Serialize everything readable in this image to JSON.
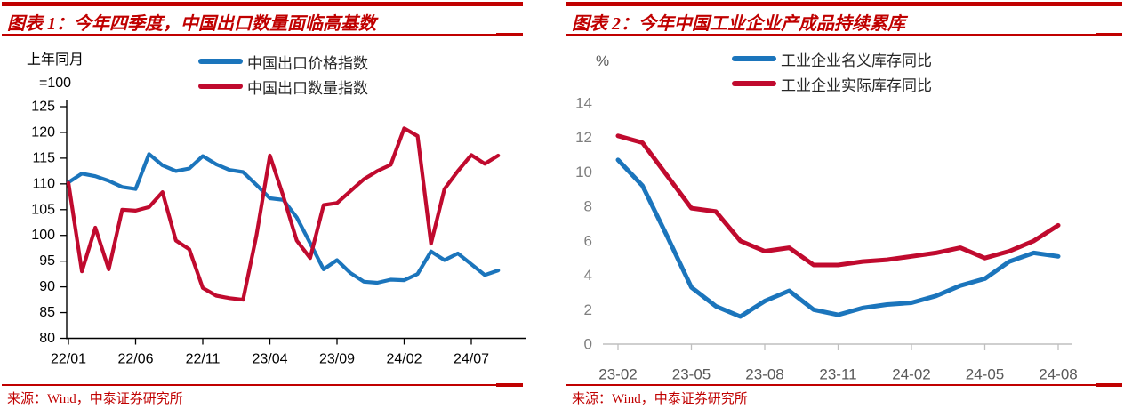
{
  "page": {
    "background": "#ffffff"
  },
  "colors": {
    "accent_red": "#C00000",
    "line_blue": "#1B75BC",
    "line_red": "#C00A2E",
    "axis_gray": "#BFBFBF",
    "label_gray": "#595959"
  },
  "chart_data": [
    {
      "type": "line",
      "title": "图表 1：今年四季度，中国出口数量面临高基数",
      "source": "来源：Wind，中泰证券研究所",
      "y_axis_unit_lines": [
        "上年同月",
        "=100"
      ],
      "ylim": [
        80,
        125
      ],
      "y_tick_step": 5,
      "grid": false,
      "legend_position": "top",
      "axis_color": "#000000",
      "x_tick_label_color": "#000000",
      "y_tick_label_color": "#000000",
      "categories": [
        "22/01",
        "22/02",
        "22/03",
        "22/04",
        "22/05",
        "22/06",
        "22/07",
        "22/08",
        "22/09",
        "22/10",
        "22/11",
        "22/12",
        "23/01",
        "23/02",
        "23/03",
        "23/04",
        "23/05",
        "23/06",
        "23/07",
        "23/08",
        "23/09",
        "23/10",
        "23/11",
        "23/12",
        "24/01",
        "24/02",
        "24/03",
        "24/04",
        "24/05",
        "24/06",
        "24/07",
        "24/08",
        "24/09"
      ],
      "x_tick_labels": [
        {
          "index": 0,
          "label": "22/01"
        },
        {
          "index": 5,
          "label": "22/06"
        },
        {
          "index": 10,
          "label": "22/11"
        },
        {
          "index": 15,
          "label": "23/04"
        },
        {
          "index": 20,
          "label": "23/09"
        },
        {
          "index": 25,
          "label": "24/02"
        },
        {
          "index": 30,
          "label": "24/07"
        }
      ],
      "series": [
        {
          "name": "中国出口价格指数",
          "color": "#1B75BC",
          "values": [
            110.3,
            112.0,
            111.5,
            110.6,
            109.4,
            109.0,
            115.8,
            113.6,
            112.5,
            113.0,
            115.4,
            113.8,
            112.7,
            112.3,
            109.8,
            107.2,
            106.9,
            103.5,
            98.5,
            93.4,
            95.2,
            92.7,
            91.0,
            90.8,
            91.4,
            91.3,
            92.5,
            96.9,
            95.2,
            96.5,
            94.4,
            92.3,
            93.2
          ]
        },
        {
          "name": "中国出口数量指数",
          "color": "#C00A2E",
          "values": [
            110.2,
            93.0,
            101.5,
            93.4,
            105.0,
            104.8,
            105.5,
            108.4,
            99.0,
            97.3,
            89.8,
            88.3,
            87.8,
            87.5,
            100.0,
            115.5,
            107.6,
            99.0,
            95.6,
            105.9,
            106.3,
            108.6,
            110.9,
            112.5,
            113.7,
            120.8,
            119.3,
            98.4,
            109.0,
            112.5,
            115.6,
            113.9,
            115.5
          ]
        }
      ]
    },
    {
      "type": "line",
      "title": "图表 2：今年中国工业企业产成品持续累库",
      "source": "来源：Wind，中泰证券研究所",
      "y_axis_unit_lines": [
        "%"
      ],
      "ylim": [
        0,
        14
      ],
      "y_tick_step": 2,
      "grid": false,
      "legend_position": "top",
      "axis_color": "#BFBFBF",
      "x_tick_label_color": "#595959",
      "y_tick_label_color": "#7F7F7F",
      "categories": [
        "23-02",
        "23-03",
        "23-04",
        "23-05",
        "23-06",
        "23-07",
        "23-08",
        "23-09",
        "23-10",
        "23-11",
        "23-12",
        "24-01",
        "24-02",
        "24-03",
        "24-04",
        "24-05",
        "24-06",
        "24-07",
        "24-08"
      ],
      "x_tick_labels": [
        {
          "index": 0,
          "label": "23-02"
        },
        {
          "index": 3,
          "label": "23-05"
        },
        {
          "index": 6,
          "label": "23-08"
        },
        {
          "index": 9,
          "label": "23-11"
        },
        {
          "index": 12,
          "label": "24-02"
        },
        {
          "index": 15,
          "label": "24-05"
        },
        {
          "index": 18,
          "label": "24-08"
        }
      ],
      "series": [
        {
          "name": "工业企业名义库存同比",
          "color": "#1B75BC",
          "values": [
            10.7,
            9.2,
            6.3,
            3.3,
            2.2,
            1.6,
            2.5,
            3.1,
            2.0,
            1.7,
            2.1,
            2.3,
            2.4,
            2.8,
            3.4,
            3.8,
            4.8,
            5.3,
            5.1
          ]
        },
        {
          "name": "工业企业实际库存同比",
          "color": "#C00A2E",
          "values": [
            12.1,
            11.7,
            9.8,
            7.9,
            7.7,
            6.0,
            5.4,
            5.6,
            4.6,
            4.6,
            4.8,
            4.9,
            5.1,
            5.3,
            5.6,
            5.0,
            5.4,
            6.0,
            6.9
          ]
        }
      ]
    }
  ]
}
